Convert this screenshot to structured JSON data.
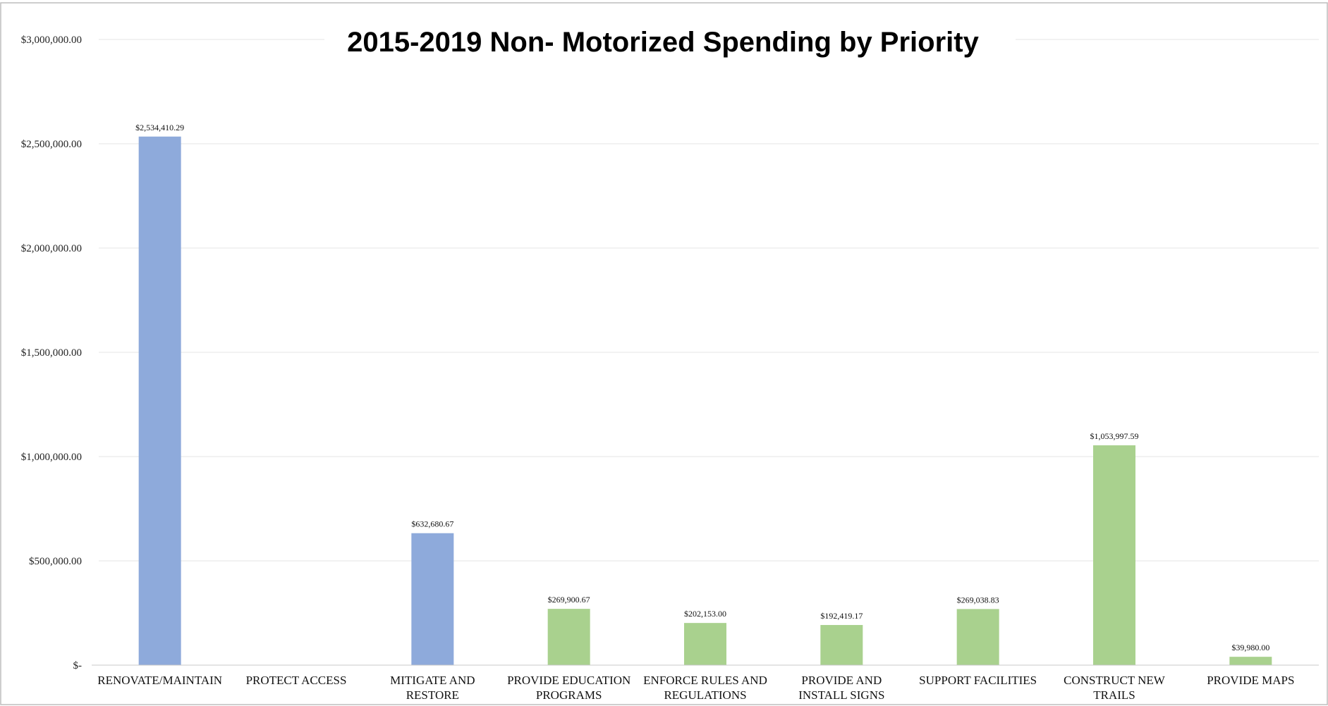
{
  "chart_data": {
    "type": "bar",
    "title": "2015-2019 Non- Motorized Spending by Priority",
    "xlabel": "",
    "ylabel": "",
    "ylim": [
      0,
      3000000
    ],
    "grid": true,
    "legend": "none",
    "y_ticks": [
      {
        "value": 0,
        "label": "$-"
      },
      {
        "value": 500000,
        "label": "$500,000.00"
      },
      {
        "value": 1000000,
        "label": "$1,000,000.00"
      },
      {
        "value": 1500000,
        "label": "$1,500,000.00"
      },
      {
        "value": 2000000,
        "label": "$2,000,000.00"
      },
      {
        "value": 2500000,
        "label": "$2,500,000.00"
      },
      {
        "value": 3000000,
        "label": "$3,000,000.00"
      }
    ],
    "categories": [
      [
        "RENOVATE/MAINTAIN"
      ],
      [
        "PROTECT ACCESS"
      ],
      [
        "MITIGATE AND",
        "RESTORE"
      ],
      [
        "PROVIDE EDUCATION",
        "PROGRAMS"
      ],
      [
        "ENFORCE RULES AND",
        "REGULATIONS"
      ],
      [
        "PROVIDE AND",
        "INSTALL SIGNS"
      ],
      [
        "SUPPORT FACILITIES"
      ],
      [
        "CONSTRUCT NEW",
        "TRAILS"
      ],
      [
        "PROVIDE MAPS"
      ]
    ],
    "values": [
      2534410.29,
      0,
      632680.67,
      269900.67,
      202153.0,
      192419.17,
      269038.83,
      1053997.59,
      39980.0
    ],
    "data_labels": [
      "$2,534,410.29",
      "",
      "$632,680.67",
      "$269,900.67",
      "$202,153.00",
      "$192,419.17",
      "$269,038.83",
      "$1,053,997.59",
      "$39,980.00"
    ],
    "bar_colors": [
      "#8eaadb",
      "#8eaadb",
      "#8eaadb",
      "#a9d18e",
      "#a9d18e",
      "#a9d18e",
      "#a9d18e",
      "#a9d18e",
      "#a9d18e"
    ]
  }
}
